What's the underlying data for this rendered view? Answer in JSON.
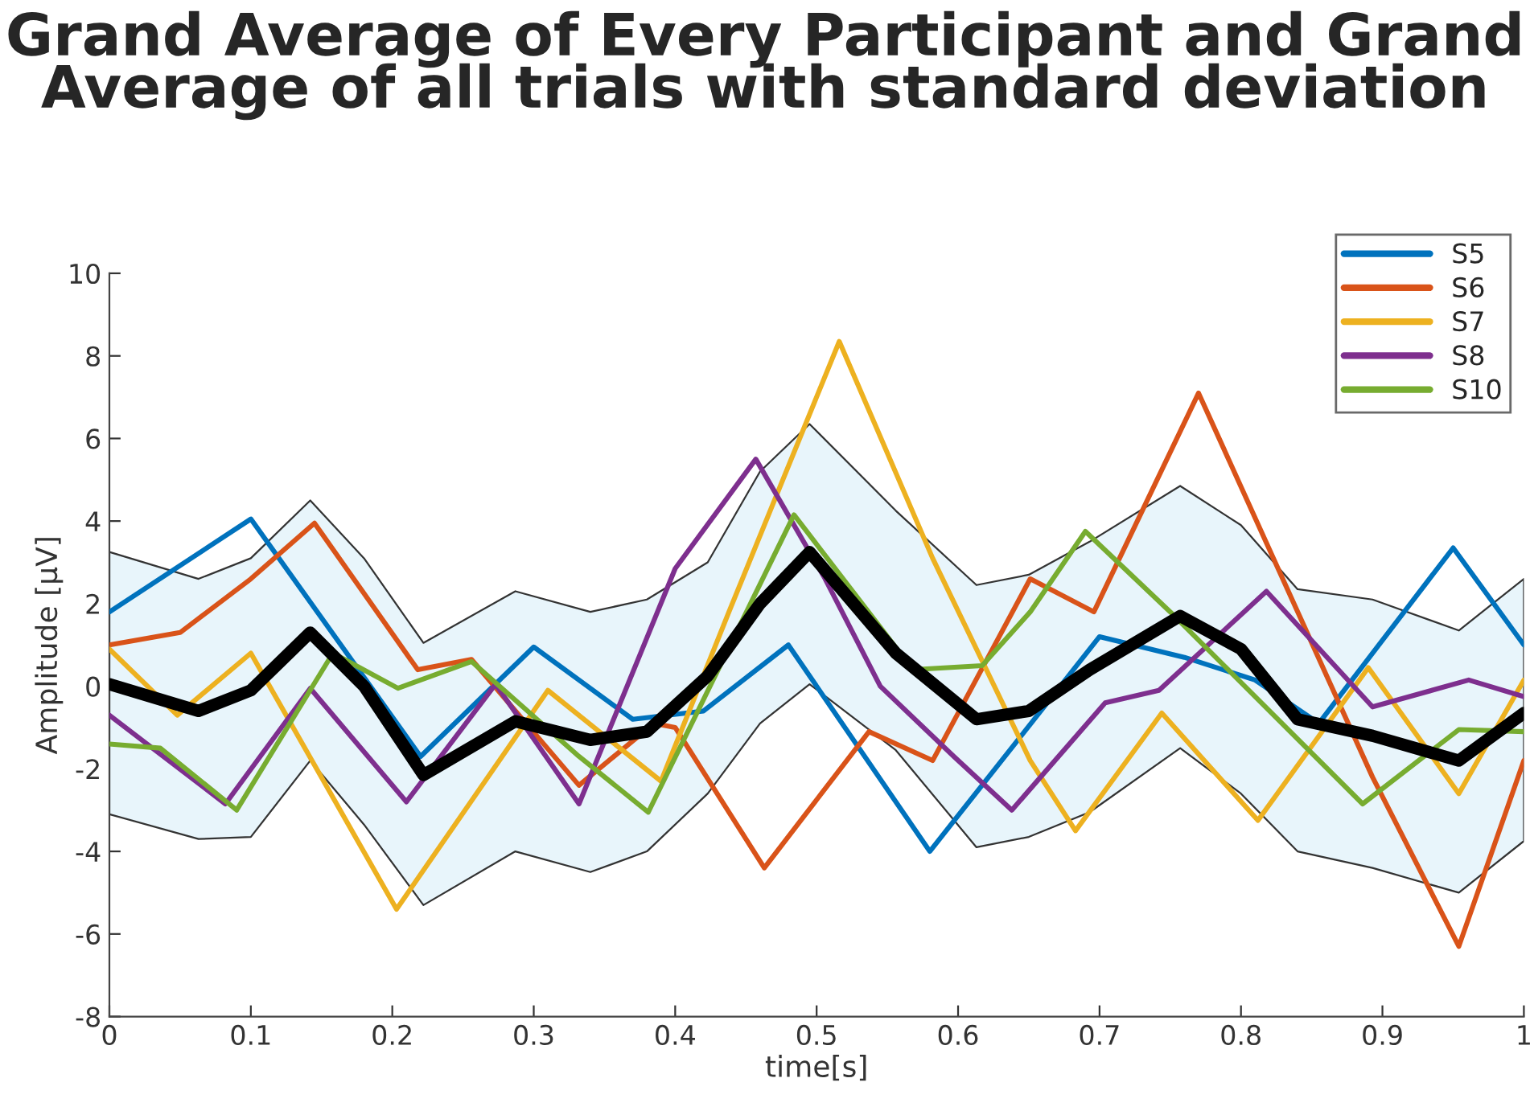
{
  "chart_data": {
    "type": "line",
    "title": "Grand Average of Every Participant and Grand Average of all trials with standard deviation",
    "xlabel": "time[s]",
    "ylabel": "Amplitude [μV]",
    "xlim": [
      0,
      1
    ],
    "xticks": [
      0,
      0.1,
      0.2,
      0.3,
      0.4,
      0.5,
      0.6,
      0.7,
      0.8,
      0.9,
      1
    ],
    "ylim": [
      -8,
      10
    ],
    "yticks": [
      -8,
      -6,
      -4,
      -2,
      0,
      2,
      4,
      6,
      8,
      10
    ],
    "grid": false,
    "legend": "top right",
    "series": [
      {
        "name": "S5",
        "color": "#0072bd",
        "x": [
          0,
          0.1,
          0.22,
          0.3,
          0.37,
          0.42,
          0.48,
          0.58,
          0.7,
          0.76,
          0.81,
          0.855,
          0.95,
          1
        ],
        "values": [
          1.8,
          4.05,
          -1.7,
          0.95,
          -0.8,
          -0.6,
          1.0,
          -4.0,
          1.2,
          0.7,
          0.15,
          -0.9,
          3.35,
          1.0
        ]
      },
      {
        "name": "S6",
        "color": "#d95319",
        "x": [
          0,
          0.05,
          0.1,
          0.145,
          0.218,
          0.256,
          0.332,
          0.385,
          0.4,
          0.463,
          0.537,
          0.582,
          0.651,
          0.696,
          0.77,
          0.893,
          0.954,
          1
        ],
        "values": [
          1.0,
          1.3,
          2.6,
          3.95,
          0.4,
          0.65,
          -2.4,
          -0.9,
          -1.0,
          -4.4,
          -1.1,
          -1.8,
          2.6,
          1.8,
          7.1,
          -2.2,
          -6.3,
          -1.8
        ]
      },
      {
        "name": "S7",
        "color": "#edb120",
        "x": [
          0,
          0.048,
          0.1,
          0.203,
          0.31,
          0.39,
          0.438,
          0.516,
          0.582,
          0.651,
          0.683,
          0.744,
          0.812,
          0.89,
          0.954,
          1
        ],
        "values": [
          0.9,
          -0.7,
          0.8,
          -5.4,
          -0.1,
          -2.3,
          1.8,
          8.35,
          3.1,
          -1.8,
          -3.5,
          -0.65,
          -3.25,
          0.45,
          -2.6,
          0.15
        ]
      },
      {
        "name": "S8",
        "color": "#7e2f8e",
        "x": [
          0,
          0.082,
          0.142,
          0.21,
          0.273,
          0.332,
          0.4,
          0.457,
          0.506,
          0.545,
          0.597,
          0.638,
          0.704,
          0.742,
          0.818,
          0.893,
          0.961,
          1
        ],
        "values": [
          -0.7,
          -2.85,
          -0.05,
          -2.8,
          0.05,
          -2.85,
          2.85,
          5.5,
          2.6,
          0,
          -1.7,
          -3.0,
          -0.4,
          -0.1,
          2.3,
          -0.5,
          0.15,
          -0.25
        ]
      },
      {
        "name": "S10",
        "color": "#77ac30",
        "x": [
          0,
          0.036,
          0.09,
          0.158,
          0.204,
          0.256,
          0.332,
          0.381,
          0.484,
          0.568,
          0.617,
          0.651,
          0.69,
          0.75,
          0.886,
          0.954,
          1
        ],
        "values": [
          -1.4,
          -1.5,
          -3.0,
          0.8,
          -0.05,
          0.6,
          -1.7,
          -3.05,
          4.15,
          0.4,
          0.5,
          1.8,
          3.75,
          1.8,
          -2.85,
          -1.05,
          -1.1
        ]
      },
      {
        "color": "#000000",
        "x": [
          0,
          0.063,
          0.1,
          0.142,
          0.18,
          0.222,
          0.287,
          0.34,
          0.38,
          0.423,
          0.46,
          0.495,
          0.556,
          0.613,
          0.65,
          0.693,
          0.757,
          0.8,
          0.84,
          0.893,
          0.954,
          1
        ],
        "values": [
          0.05,
          -0.6,
          -0.1,
          1.3,
          0.0,
          -2.15,
          -0.85,
          -1.3,
          -1.1,
          0.25,
          2.0,
          3.25,
          0.8,
          -0.8,
          -0.6,
          0.4,
          1.7,
          0.9,
          -0.8,
          -1.2,
          -1.8,
          -0.65
        ],
        "upper": [
          3.25,
          2.6,
          3.1,
          4.5,
          3.1,
          1.05,
          2.3,
          1.8,
          2.1,
          3.0,
          5.2,
          6.35,
          4.25,
          2.45,
          2.7,
          3.5,
          4.85,
          3.9,
          2.35,
          2.1,
          1.35,
          2.6
        ],
        "lower": [
          -3.1,
          -3.7,
          -3.65,
          -1.8,
          -3.35,
          -5.3,
          -4.0,
          -4.5,
          -4.0,
          -2.6,
          -0.9,
          0.05,
          -1.55,
          -3.9,
          -3.65,
          -3.05,
          -1.5,
          -2.6,
          -4.0,
          -4.4,
          -5.0,
          -3.75
        ]
      }
    ]
  }
}
